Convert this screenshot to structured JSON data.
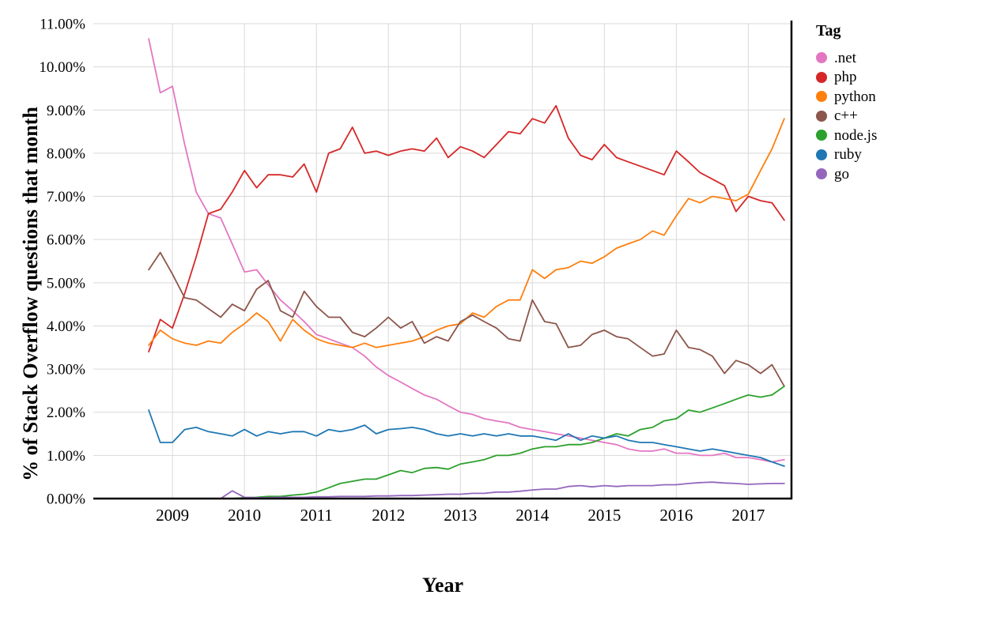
{
  "chart_data": {
    "type": "line",
    "xlabel": "Year",
    "ylabel": "% of Stack Overflow questions that month",
    "legend_title": "Tag",
    "legend_position": "right",
    "grid": true,
    "grid_color": "#d9d9d9",
    "axis_color": "#000000",
    "background_color": "#ffffff",
    "xlim": [
      2007.9,
      2017.6
    ],
    "ylim": [
      0,
      11
    ],
    "x_ticks": [
      2009,
      2010,
      2011,
      2012,
      2013,
      2014,
      2015,
      2016,
      2017
    ],
    "y_ticks": [
      0,
      1,
      2,
      3,
      4,
      5,
      6,
      7,
      8,
      9,
      10,
      11
    ],
    "y_tick_suffix": "%",
    "x": [
      2008.67,
      2008.83,
      2009.0,
      2009.17,
      2009.33,
      2009.5,
      2009.67,
      2009.83,
      2010.0,
      2010.17,
      2010.33,
      2010.5,
      2010.67,
      2010.83,
      2011.0,
      2011.17,
      2011.33,
      2011.5,
      2011.67,
      2011.83,
      2012.0,
      2012.17,
      2012.33,
      2012.5,
      2012.67,
      2012.83,
      2013.0,
      2013.17,
      2013.33,
      2013.5,
      2013.67,
      2013.83,
      2014.0,
      2014.17,
      2014.33,
      2014.5,
      2014.67,
      2014.83,
      2015.0,
      2015.17,
      2015.33,
      2015.5,
      2015.67,
      2015.83,
      2016.0,
      2016.17,
      2016.33,
      2016.5,
      2016.67,
      2016.83,
      2017.0,
      2017.17,
      2017.33,
      2017.5
    ],
    "series": [
      {
        "name": ".net",
        "color": "#e377c2",
        "values": [
          10.65,
          9.4,
          9.55,
          8.2,
          7.1,
          6.6,
          6.5,
          5.9,
          5.25,
          5.3,
          4.95,
          4.6,
          4.35,
          4.1,
          3.8,
          3.7,
          3.6,
          3.5,
          3.3,
          3.05,
          2.85,
          2.7,
          2.55,
          2.4,
          2.3,
          2.15,
          2.0,
          1.95,
          1.85,
          1.8,
          1.75,
          1.65,
          1.6,
          1.55,
          1.5,
          1.45,
          1.4,
          1.35,
          1.3,
          1.25,
          1.15,
          1.1,
          1.1,
          1.15,
          1.05,
          1.05,
          1.0,
          1.0,
          1.05,
          0.95,
          0.95,
          0.9,
          0.85,
          0.9
        ]
      },
      {
        "name": "php",
        "color": "#d62728",
        "values": [
          3.4,
          4.15,
          3.95,
          4.75,
          5.6,
          6.6,
          6.7,
          7.1,
          7.6,
          7.2,
          7.5,
          7.5,
          7.45,
          7.75,
          7.1,
          8.0,
          8.1,
          8.6,
          8.0,
          8.05,
          7.95,
          8.05,
          8.1,
          8.05,
          8.35,
          7.9,
          8.15,
          8.05,
          7.9,
          8.2,
          8.5,
          8.45,
          8.8,
          8.7,
          9.1,
          8.35,
          7.95,
          7.85,
          8.2,
          7.9,
          7.8,
          7.7,
          7.6,
          7.5,
          8.05,
          7.8,
          7.55,
          7.4,
          7.25,
          6.65,
          7.0,
          6.9,
          6.85,
          6.45
        ]
      },
      {
        "name": "python",
        "color": "#ff7f0e",
        "values": [
          3.55,
          3.9,
          3.7,
          3.6,
          3.55,
          3.65,
          3.6,
          3.85,
          4.05,
          4.3,
          4.1,
          3.65,
          4.15,
          3.9,
          3.7,
          3.6,
          3.55,
          3.5,
          3.6,
          3.5,
          3.55,
          3.6,
          3.65,
          3.75,
          3.9,
          4.0,
          4.05,
          4.3,
          4.2,
          4.45,
          4.6,
          4.6,
          5.3,
          5.1,
          5.3,
          5.35,
          5.5,
          5.45,
          5.6,
          5.8,
          5.9,
          6.0,
          6.2,
          6.1,
          6.55,
          6.95,
          6.85,
          7.0,
          6.95,
          6.9,
          7.05,
          7.6,
          8.1,
          8.8
        ]
      },
      {
        "name": "c++",
        "color": "#8c564b",
        "values": [
          5.3,
          5.7,
          5.2,
          4.65,
          4.6,
          4.4,
          4.2,
          4.5,
          4.35,
          4.85,
          5.05,
          4.35,
          4.2,
          4.8,
          4.45,
          4.2,
          4.2,
          3.85,
          3.75,
          3.95,
          4.2,
          3.95,
          4.1,
          3.6,
          3.75,
          3.65,
          4.1,
          4.25,
          4.1,
          3.95,
          3.7,
          3.65,
          4.6,
          4.1,
          4.05,
          3.5,
          3.55,
          3.8,
          3.9,
          3.75,
          3.7,
          3.5,
          3.3,
          3.35,
          3.9,
          3.5,
          3.45,
          3.3,
          2.9,
          3.2,
          3.1,
          2.9,
          3.1,
          2.6
        ]
      },
      {
        "name": "node.js",
        "color": "#2ca02c",
        "values": [
          0,
          0,
          0,
          0,
          0,
          0,
          0,
          0,
          0.02,
          0.03,
          0.05,
          0.05,
          0.08,
          0.1,
          0.15,
          0.25,
          0.35,
          0.4,
          0.45,
          0.45,
          0.55,
          0.65,
          0.6,
          0.7,
          0.72,
          0.68,
          0.8,
          0.85,
          0.9,
          1.0,
          1.0,
          1.05,
          1.15,
          1.2,
          1.2,
          1.25,
          1.25,
          1.3,
          1.4,
          1.5,
          1.45,
          1.6,
          1.65,
          1.8,
          1.85,
          2.05,
          2.0,
          2.1,
          2.2,
          2.3,
          2.4,
          2.35,
          2.4,
          2.6
        ]
      },
      {
        "name": "ruby",
        "color": "#1f77b4",
        "values": [
          2.05,
          1.3,
          1.3,
          1.6,
          1.65,
          1.55,
          1.5,
          1.45,
          1.6,
          1.45,
          1.55,
          1.5,
          1.55,
          1.55,
          1.45,
          1.6,
          1.55,
          1.6,
          1.7,
          1.5,
          1.6,
          1.62,
          1.65,
          1.6,
          1.5,
          1.45,
          1.5,
          1.45,
          1.5,
          1.45,
          1.5,
          1.45,
          1.45,
          1.4,
          1.35,
          1.5,
          1.35,
          1.45,
          1.4,
          1.45,
          1.35,
          1.3,
          1.3,
          1.25,
          1.2,
          1.15,
          1.1,
          1.15,
          1.1,
          1.05,
          1.0,
          0.95,
          0.85,
          0.75
        ]
      },
      {
        "name": "go",
        "color": "#9467bd",
        "values": [
          0,
          0,
          0,
          0,
          0,
          0,
          0,
          0.18,
          0.03,
          0.02,
          0.02,
          0.03,
          0.03,
          0.03,
          0.04,
          0.04,
          0.05,
          0.05,
          0.05,
          0.06,
          0.06,
          0.07,
          0.07,
          0.08,
          0.09,
          0.1,
          0.1,
          0.12,
          0.12,
          0.15,
          0.15,
          0.17,
          0.2,
          0.22,
          0.22,
          0.28,
          0.3,
          0.27,
          0.3,
          0.28,
          0.3,
          0.3,
          0.3,
          0.32,
          0.32,
          0.35,
          0.37,
          0.38,
          0.36,
          0.35,
          0.33,
          0.34,
          0.35,
          0.35
        ]
      }
    ]
  }
}
